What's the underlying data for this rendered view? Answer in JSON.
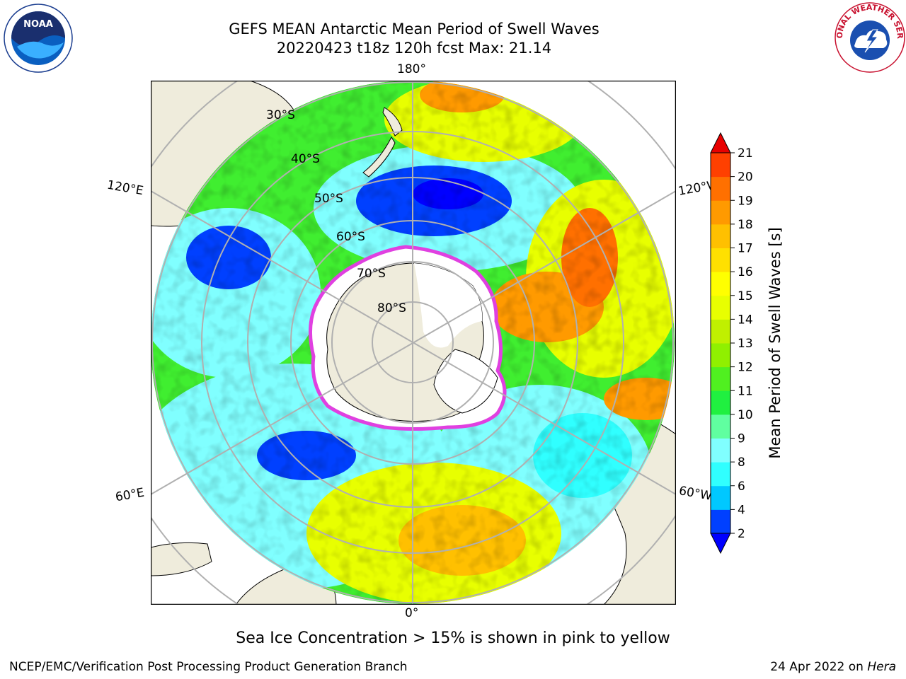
{
  "title": {
    "line1": "GEFS MEAN Antarctic Mean Period of Swell Waves",
    "line2": "20220423 t18z 120h fcst   Max: 21.14"
  },
  "map": {
    "longitude_labels": {
      "top": "180°",
      "bottom": "0°",
      "left_upper": "120°E",
      "right_upper": "120°W",
      "left_lower": "60°E",
      "right_lower": "60°W"
    },
    "latitude_labels": [
      "30°S",
      "40°S",
      "50°S",
      "60°S",
      "70°S",
      "80°S"
    ],
    "colors": {
      "land": "#efecdc",
      "ice": "#ffffff",
      "ice_edge": "#e040e0"
    }
  },
  "colorbar": {
    "label": "Mean Period of Swell Waves [s]",
    "ticks": [
      "2",
      "4",
      "6",
      "8",
      "9",
      "10",
      "11",
      "12",
      "13",
      "14",
      "15",
      "16",
      "17",
      "18",
      "19",
      "20",
      "21"
    ],
    "colors": [
      "#0040ff",
      "#00c8ff",
      "#30ffff",
      "#80ffff",
      "#60ffa0",
      "#20f040",
      "#50f020",
      "#90f000",
      "#c0f000",
      "#e8ff00",
      "#ffff00",
      "#ffe000",
      "#ffc000",
      "#ff9a00",
      "#ff7000",
      "#ff4000",
      "#ff1500"
    ],
    "under_color": "#0000ff",
    "over_color": "#e80000"
  },
  "footer": {
    "center": "Sea Ice Concentration > 15% is shown in pink to yellow",
    "left": "NCEP/EMC/Verification Post Processing Product Generation Branch",
    "right_date": "24 Apr 2022 on ",
    "right_machine": "Hera"
  },
  "logos": {
    "left": "NOAA",
    "right": "NATIONAL WEATHER SERVICE"
  }
}
